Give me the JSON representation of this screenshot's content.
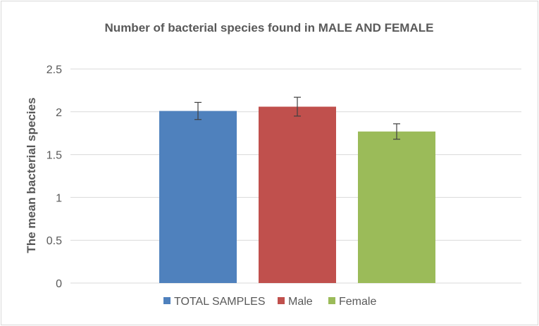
{
  "chart_data": {
    "type": "bar",
    "title": "Number of bacterial species found in MALE AND FEMALE",
    "xlabel": "",
    "ylabel": "The mean bacterial species",
    "ylim": [
      0,
      2.5
    ],
    "yticks": [
      "0",
      "0.5",
      "1",
      "1.5",
      "2",
      "2.5"
    ],
    "ytick_values": [
      0,
      0.5,
      1,
      1.5,
      2,
      2.5
    ],
    "grid": true,
    "legend_position": "bottom",
    "series": [
      {
        "name": "TOTAL SAMPLES",
        "value": 2.01,
        "error": 0.1,
        "color": "#4f81bd"
      },
      {
        "name": "Male",
        "value": 2.06,
        "error": 0.11,
        "color": "#c0504d"
      },
      {
        "name": "Female",
        "value": 1.77,
        "error": 0.09,
        "color": "#9bbb59"
      }
    ]
  }
}
